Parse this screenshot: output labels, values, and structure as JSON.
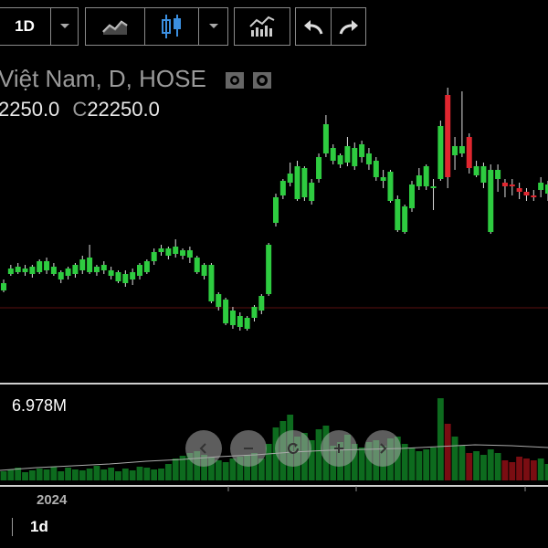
{
  "toolbar": {
    "timeframe": "1D",
    "icons": [
      "chevron-down-icon",
      "line-chart-icon",
      "candlestick-icon",
      "chevron-down-icon",
      "indicators-icon",
      "undo-icon",
      "redo-icon"
    ]
  },
  "symbol": {
    "title": "Việt Nam, D, HOSE",
    "close_label": "C",
    "open_partial": "2250.0",
    "close_value": "22250.0"
  },
  "volume": {
    "value": "6.978M"
  },
  "axis": {
    "year_label": "2024"
  },
  "footer": {
    "timeframe": "1d"
  },
  "colors": {
    "up": "#2ecc40",
    "down": "#e0262f",
    "volume_up": "#0d6b1e",
    "volume_down": "#7a0d12",
    "background": "#000000"
  },
  "zoom_controls": [
    "zoom-out-icon",
    "zoom-minus-icon",
    "reset-icon",
    "zoom-plus-icon",
    "zoom-in-icon"
  ]
}
